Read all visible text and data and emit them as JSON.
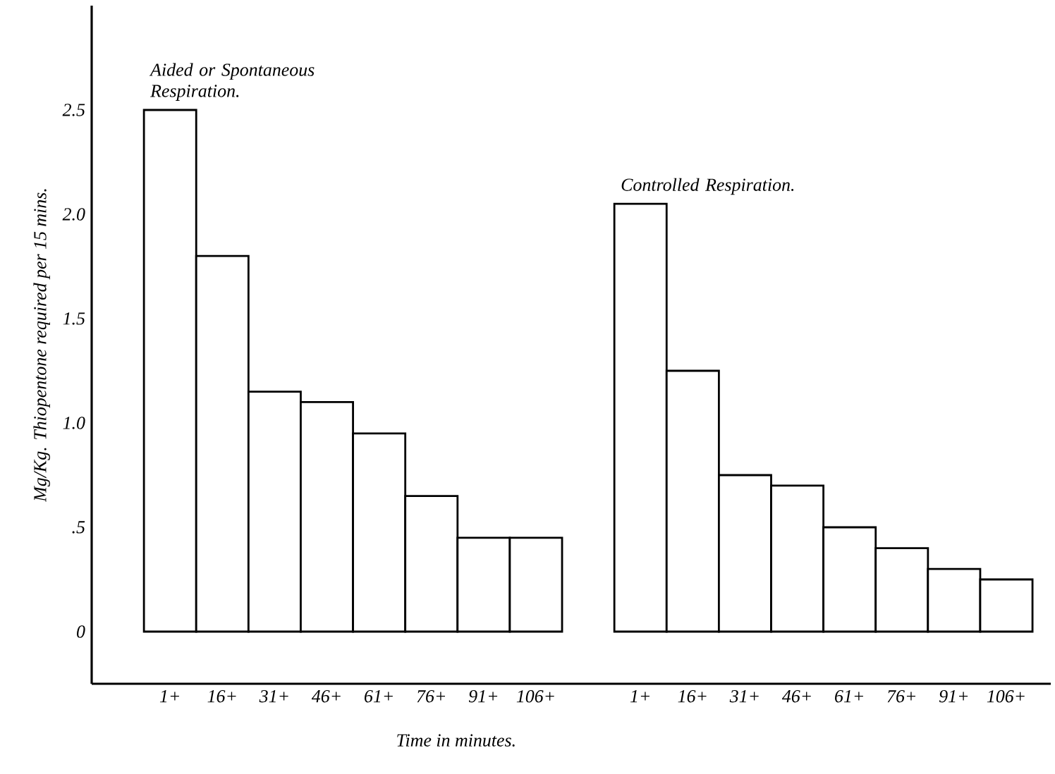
{
  "chart_data": {
    "type": "bar",
    "xlabel": "Time in minutes.",
    "ylabel": "Mg/Kg. Thiopentone required per 15 mins.",
    "categories": [
      "1+",
      "16+",
      "31+",
      "46+",
      "61+",
      "76+",
      "91+",
      "106+",
      null,
      "1+",
      "16+",
      "31+",
      "46+",
      "61+",
      "76+",
      "91+",
      "106+"
    ],
    "series": [
      {
        "name": "Aided or Spontaneous Respiration.",
        "color": "#ffffff",
        "values": [
          2.5,
          1.8,
          1.15,
          1.1,
          0.95,
          0.65,
          0.45,
          0.45,
          null,
          null,
          null,
          null,
          null,
          null,
          null,
          null,
          null
        ]
      },
      {
        "name": "Controlled Respiration.",
        "color": "#ffffff",
        "values": [
          null,
          null,
          null,
          null,
          null,
          null,
          null,
          null,
          null,
          2.05,
          1.25,
          0.75,
          0.7,
          0.5,
          0.4,
          0.3,
          0.25
        ]
      }
    ],
    "ylim": [
      -0.25,
      3.0
    ],
    "yticks": [
      0,
      {
        "value": 0.5,
        "label": ".5"
      },
      {
        "value": 1.0,
        "label": "1.0"
      },
      1.5,
      {
        "value": 2.0,
        "label": "2.0"
      },
      2.5
    ]
  }
}
